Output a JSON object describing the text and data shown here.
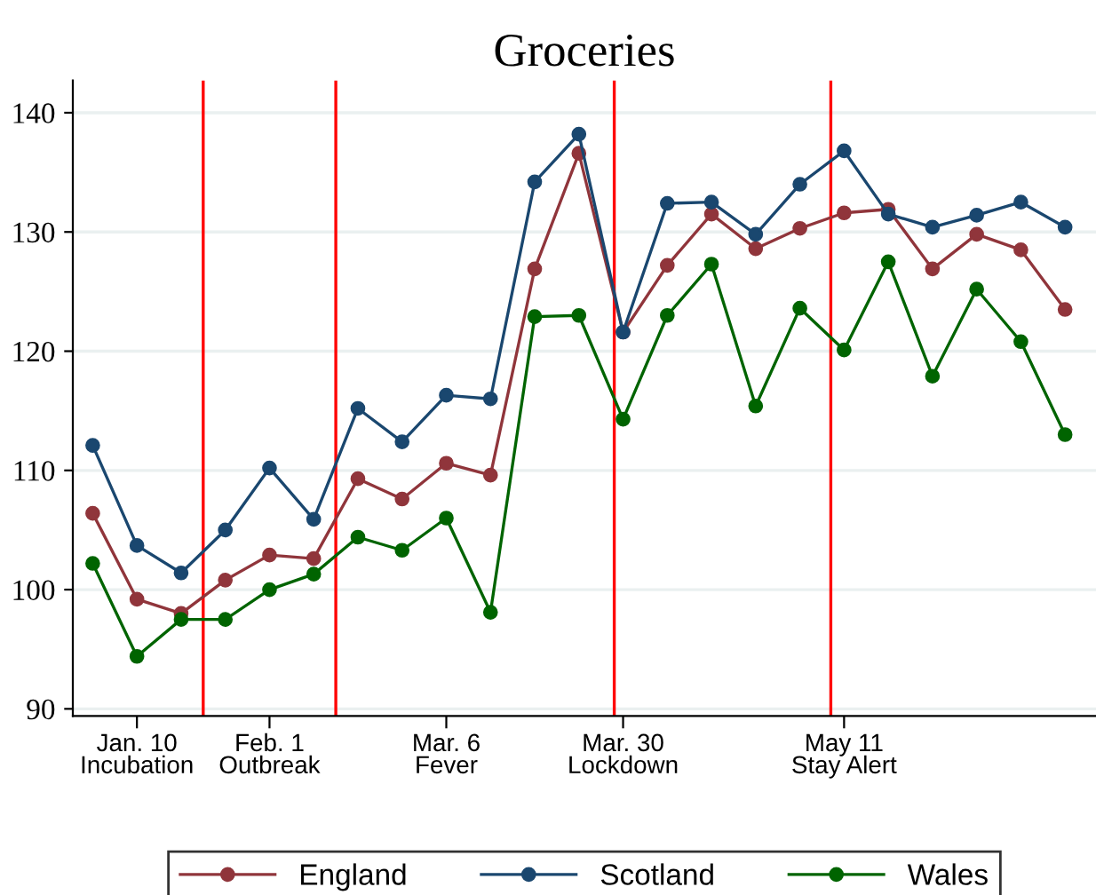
{
  "chart_data": {
    "type": "line",
    "title": "Groceries",
    "categories": [
      null,
      "Jan. 10\nIncubation",
      null,
      null,
      "Feb. 1\nOutbreak",
      null,
      null,
      null,
      "Mar. 6\nFever",
      null,
      null,
      null,
      "Mar. 30\nLockdown",
      null,
      null,
      null,
      null,
      "May 11\nStay Alert",
      null,
      null,
      null,
      null,
      null
    ],
    "series": [
      {
        "name": "England",
        "color": "#90353b",
        "values": [
          106.4,
          99.2,
          98.0,
          100.8,
          102.9,
          102.6,
          109.3,
          107.6,
          110.6,
          109.6,
          126.9,
          136.6,
          121.6,
          127.2,
          131.5,
          128.6,
          130.3,
          131.6,
          131.9,
          126.9,
          129.8,
          128.5,
          123.5
        ]
      },
      {
        "name": "Scotland",
        "color": "#1a476f",
        "values": [
          112.1,
          103.7,
          101.4,
          105.0,
          110.2,
          105.9,
          115.2,
          112.4,
          116.3,
          116.0,
          134.2,
          138.2,
          121.6,
          132.4,
          132.5,
          129.8,
          134.0,
          136.8,
          131.5,
          130.4,
          131.4,
          132.5,
          130.4
        ]
      },
      {
        "name": "Wales",
        "color": "#006400",
        "values": [
          102.2,
          94.4,
          97.5,
          97.5,
          100.0,
          101.3,
          104.4,
          103.3,
          106.0,
          98.1,
          122.9,
          123.0,
          114.3,
          123.0,
          127.3,
          115.4,
          123.6,
          120.1,
          127.5,
          117.9,
          125.2,
          120.8,
          113.0
        ]
      }
    ],
    "ylim": [
      89.4,
      142.7
    ],
    "yticks": [
      90,
      100,
      110,
      120,
      130,
      140
    ],
    "grid": "y",
    "legend": "bottom",
    "marker": "circle",
    "line_style": "solid"
  }
}
